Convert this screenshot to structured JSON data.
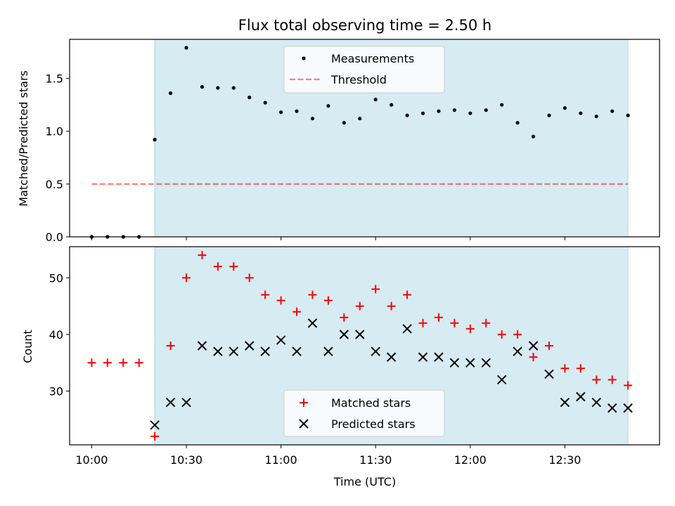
{
  "chart_data": [
    {
      "type": "scatter",
      "title": "Flux total observing time = 2.50 h",
      "ylabel": "Matched/Predicted stars",
      "xlim": [
        "09:53",
        "13:00"
      ],
      "ylim": [
        0,
        1.87
      ],
      "yticks": [
        "0.0",
        "0.5",
        "1.0",
        "1.5"
      ],
      "shaded_span": [
        "10:20",
        "12:50"
      ],
      "shade_color": "#add8e6",
      "legend": {
        "placement": "top-center",
        "entries": [
          "Measurements",
          "Threshold"
        ]
      },
      "threshold": {
        "name": "Threshold",
        "value": 0.5,
        "x": [
          "10:00",
          "12:50"
        ],
        "color": "#ff0000"
      },
      "series": [
        {
          "name": "Measurements",
          "color": "#000000",
          "marker": "dot",
          "x": [
            "10:00",
            "10:05",
            "10:10",
            "10:15",
            "10:20",
            "10:25",
            "10:30",
            "10:35",
            "10:40",
            "10:45",
            "10:50",
            "10:55",
            "11:00",
            "11:05",
            "11:10",
            "11:15",
            "11:20",
            "11:25",
            "11:30",
            "11:35",
            "11:40",
            "11:45",
            "11:50",
            "11:55",
            "12:00",
            "12:05",
            "12:10",
            "12:15",
            "12:20",
            "12:25",
            "12:30",
            "12:35",
            "12:40",
            "12:45",
            "12:50"
          ],
          "y": [
            0,
            0,
            0,
            0,
            0.92,
            1.36,
            1.79,
            1.42,
            1.41,
            1.41,
            1.32,
            1.27,
            1.18,
            1.19,
            1.12,
            1.24,
            1.08,
            1.12,
            1.3,
            1.25,
            1.15,
            1.17,
            1.19,
            1.2,
            1.17,
            1.2,
            1.25,
            1.08,
            0.95,
            1.15,
            1.22,
            1.17,
            1.14,
            1.19,
            1.15
          ]
        }
      ]
    },
    {
      "type": "scatter",
      "xlabel": "Time (UTC)",
      "ylabel": "Count",
      "xlim": [
        "09:53",
        "13:00"
      ],
      "ylim": [
        20.5,
        55.5
      ],
      "xticks": [
        "10:00",
        "10:30",
        "11:00",
        "11:30",
        "12:00",
        "12:30"
      ],
      "yticks": [
        "30",
        "40",
        "50"
      ],
      "shaded_span": [
        "10:20",
        "12:50"
      ],
      "shade_color": "#add8e6",
      "legend": {
        "placement": "bottom-center",
        "entries": [
          "Matched stars",
          "Predicted stars"
        ]
      },
      "series": [
        {
          "name": "Matched stars",
          "color": "#ff0000",
          "marker": "plus",
          "x": [
            "10:00",
            "10:05",
            "10:10",
            "10:15",
            "10:20",
            "10:25",
            "10:30",
            "10:35",
            "10:40",
            "10:45",
            "10:50",
            "10:55",
            "11:00",
            "11:05",
            "11:10",
            "11:15",
            "11:20",
            "11:25",
            "11:30",
            "11:35",
            "11:40",
            "11:45",
            "11:50",
            "11:55",
            "12:00",
            "12:05",
            "12:10",
            "12:15",
            "12:20",
            "12:25",
            "12:30",
            "12:35",
            "12:40",
            "12:45",
            "12:50"
          ],
          "y": [
            35,
            35,
            35,
            35,
            22,
            38,
            50,
            54,
            52,
            52,
            50,
            47,
            46,
            44,
            47,
            46,
            43,
            45,
            48,
            45,
            47,
            42,
            43,
            42,
            41,
            42,
            40,
            40,
            36,
            38,
            34,
            34,
            32,
            32,
            31
          ]
        },
        {
          "name": "Predicted stars",
          "color": "#000000",
          "marker": "x",
          "x": [
            "10:20",
            "10:25",
            "10:30",
            "10:35",
            "10:40",
            "10:45",
            "10:50",
            "10:55",
            "11:00",
            "11:05",
            "11:10",
            "11:15",
            "11:20",
            "11:25",
            "11:30",
            "11:35",
            "11:40",
            "11:45",
            "11:50",
            "11:55",
            "12:00",
            "12:05",
            "12:10",
            "12:15",
            "12:20",
            "12:25",
            "12:30",
            "12:35",
            "12:40",
            "12:45",
            "12:50"
          ],
          "y": [
            24,
            28,
            28,
            38,
            37,
            37,
            38,
            37,
            39,
            37,
            42,
            37,
            40,
            40,
            37,
            36,
            41,
            36,
            36,
            35,
            35,
            35,
            32,
            37,
            38,
            33,
            28,
            29,
            28,
            27,
            27
          ]
        }
      ]
    }
  ]
}
